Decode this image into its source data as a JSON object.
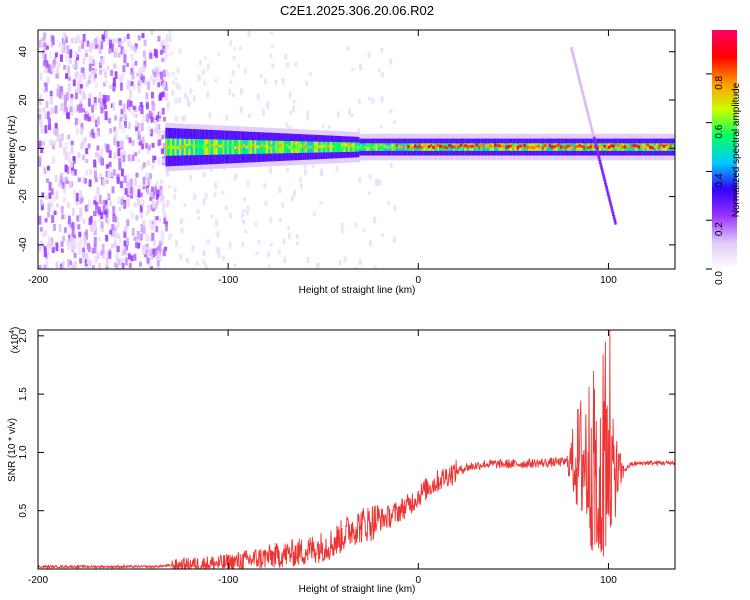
{
  "title": "C2E1.2025.306.20.06.R02",
  "chart_data": [
    {
      "type": "heatmap",
      "xlabel": "Height of straight line (km)",
      "ylabel": "Frequency (Hz)",
      "xlim": [
        -200,
        135
      ],
      "ylim": [
        -50,
        49
      ],
      "xticks": [
        -200,
        -100,
        0,
        100
      ],
      "xtick_labels": [
        "-200",
        "-100",
        "0",
        "100"
      ],
      "yticks": [
        -40,
        -20,
        0,
        20,
        40
      ],
      "ytick_labels": [
        "-40",
        "-20",
        "0",
        "20",
        "40"
      ],
      "colorbar": {
        "label": "Normalized spectral amplitude",
        "range": [
          0.0,
          0.98
        ],
        "ticks": [
          0.0,
          0.2,
          0.4,
          0.6,
          0.8
        ],
        "tick_labels": [
          "0.0",
          "0.2",
          "0.4",
          "0.6",
          "0.8"
        ],
        "colors": [
          "#ffffff",
          "#e0c8f8",
          "#9933ff",
          "#3300ff",
          "#00ccff",
          "#00ff66",
          "#ccff00",
          "#ff9900",
          "#ff0000",
          "#ff0066"
        ]
      },
      "band_center_freq_hz": 0.5,
      "features": [
        {
          "name": "broadband noise",
          "x_range": [
            -200,
            -133
          ],
          "freq_range": [
            -50,
            49
          ],
          "level": 0.2
        },
        {
          "name": "narrowband signal",
          "x_range": [
            -133,
            135
          ],
          "freq_hz": 0.5,
          "level_range": [
            0.3,
            0.95
          ]
        },
        {
          "name": "sweep",
          "x_range": [
            80,
            103
          ],
          "freq_range": [
            42,
            -30
          ]
        }
      ]
    },
    {
      "type": "line",
      "xlabel": "Height of straight line (km)",
      "ylabel": "SNR (10 * v/v)",
      "y_multiplier": "(x10",
      "y_multiplier_exp": "4",
      "xlim": [
        -200,
        135
      ],
      "ylim": [
        0,
        2.05
      ],
      "xticks": [
        -200,
        -100,
        0,
        100
      ],
      "xtick_labels": [
        "-200",
        "-100",
        "0",
        "100"
      ],
      "yticks": [
        0.5,
        1.0,
        1.5,
        2.0
      ],
      "ytick_labels": [
        "0.5",
        "1.0",
        "1.5",
        "2.0"
      ],
      "line_color": "#ee3333",
      "series": [
        {
          "name": "SNR",
          "x": [
            -200,
            -140,
            -120,
            -100,
            -80,
            -60,
            -45,
            -35,
            -25,
            -15,
            -5,
            5,
            15,
            25,
            35,
            50,
            65,
            80,
            88,
            95,
            100,
            105,
            112,
            120,
            135
          ],
          "y": [
            0.02,
            0.02,
            0.04,
            0.05,
            0.1,
            0.15,
            0.22,
            0.35,
            0.4,
            0.45,
            0.55,
            0.7,
            0.8,
            0.87,
            0.9,
            0.9,
            0.91,
            0.92,
            0.95,
            0.9,
            0.85,
            0.8,
            0.9,
            0.91,
            0.91
          ]
        }
      ]
    }
  ]
}
